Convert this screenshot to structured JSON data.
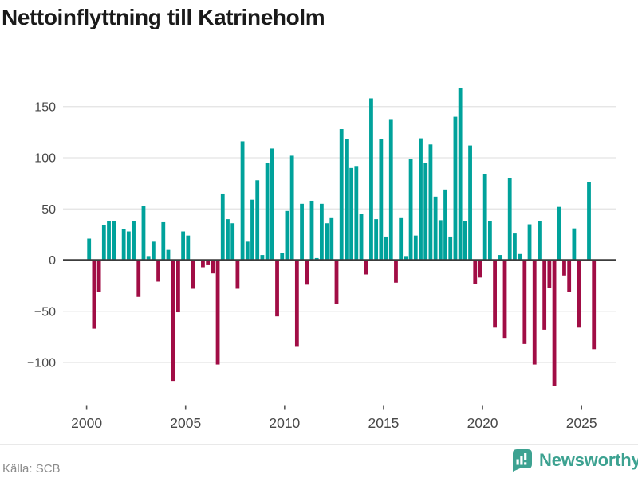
{
  "title": "Nettoinflyttning till Katrineholm",
  "source": "Källa: SCB",
  "branding": {
    "name": "Newsworthy",
    "icon": "newsworthy-barchart-bubble-icon"
  },
  "chart_data": {
    "type": "bar",
    "title": "Nettoinflyttning till Katrineholm",
    "xlabel": "",
    "ylabel": "",
    "period": "quarterly",
    "start_year": 2000,
    "start_quarter": 1,
    "end_label": "2025 Q3",
    "grid": true,
    "legend": "none",
    "y_ticks": [
      150,
      100,
      50,
      0,
      -50,
      -100
    ],
    "ylim": [
      -130,
      175
    ],
    "x_tick_years": [
      2000,
      2005,
      2010,
      2015,
      2020,
      2025
    ],
    "series": [
      {
        "name": "Nettoinflyttning",
        "values": [
          21,
          -67,
          -31,
          34,
          38,
          38,
          0,
          30,
          28,
          38,
          -36,
          53,
          4,
          18,
          -21,
          37,
          10,
          -118,
          -51,
          28,
          24,
          -28,
          0,
          -7,
          -5,
          -13,
          -102,
          65,
          40,
          36,
          -28,
          116,
          18,
          59,
          78,
          5,
          95,
          109,
          -55,
          7,
          48,
          102,
          -84,
          55,
          -24,
          58,
          2,
          55,
          36,
          41,
          -43,
          128,
          118,
          90,
          92,
          45,
          -14,
          158,
          40,
          118,
          23,
          137,
          -22,
          41,
          4,
          99,
          24,
          119,
          95,
          113,
          62,
          39,
          69,
          23,
          140,
          168,
          38,
          112,
          -23,
          -17,
          84,
          38,
          -66,
          5,
          -76,
          80,
          26,
          6,
          -82,
          35,
          -102,
          38,
          -68,
          -27,
          -123,
          52,
          -15,
          -31,
          31,
          -66,
          0,
          76,
          -87
        ]
      }
    ],
    "colors": {
      "positive": "#00a29b",
      "negative": "#a10d45",
      "axis": "#3c3c3c",
      "grid": "#e3e3e3",
      "tick_text": "#484848",
      "brand_teal": "#3da291"
    }
  }
}
